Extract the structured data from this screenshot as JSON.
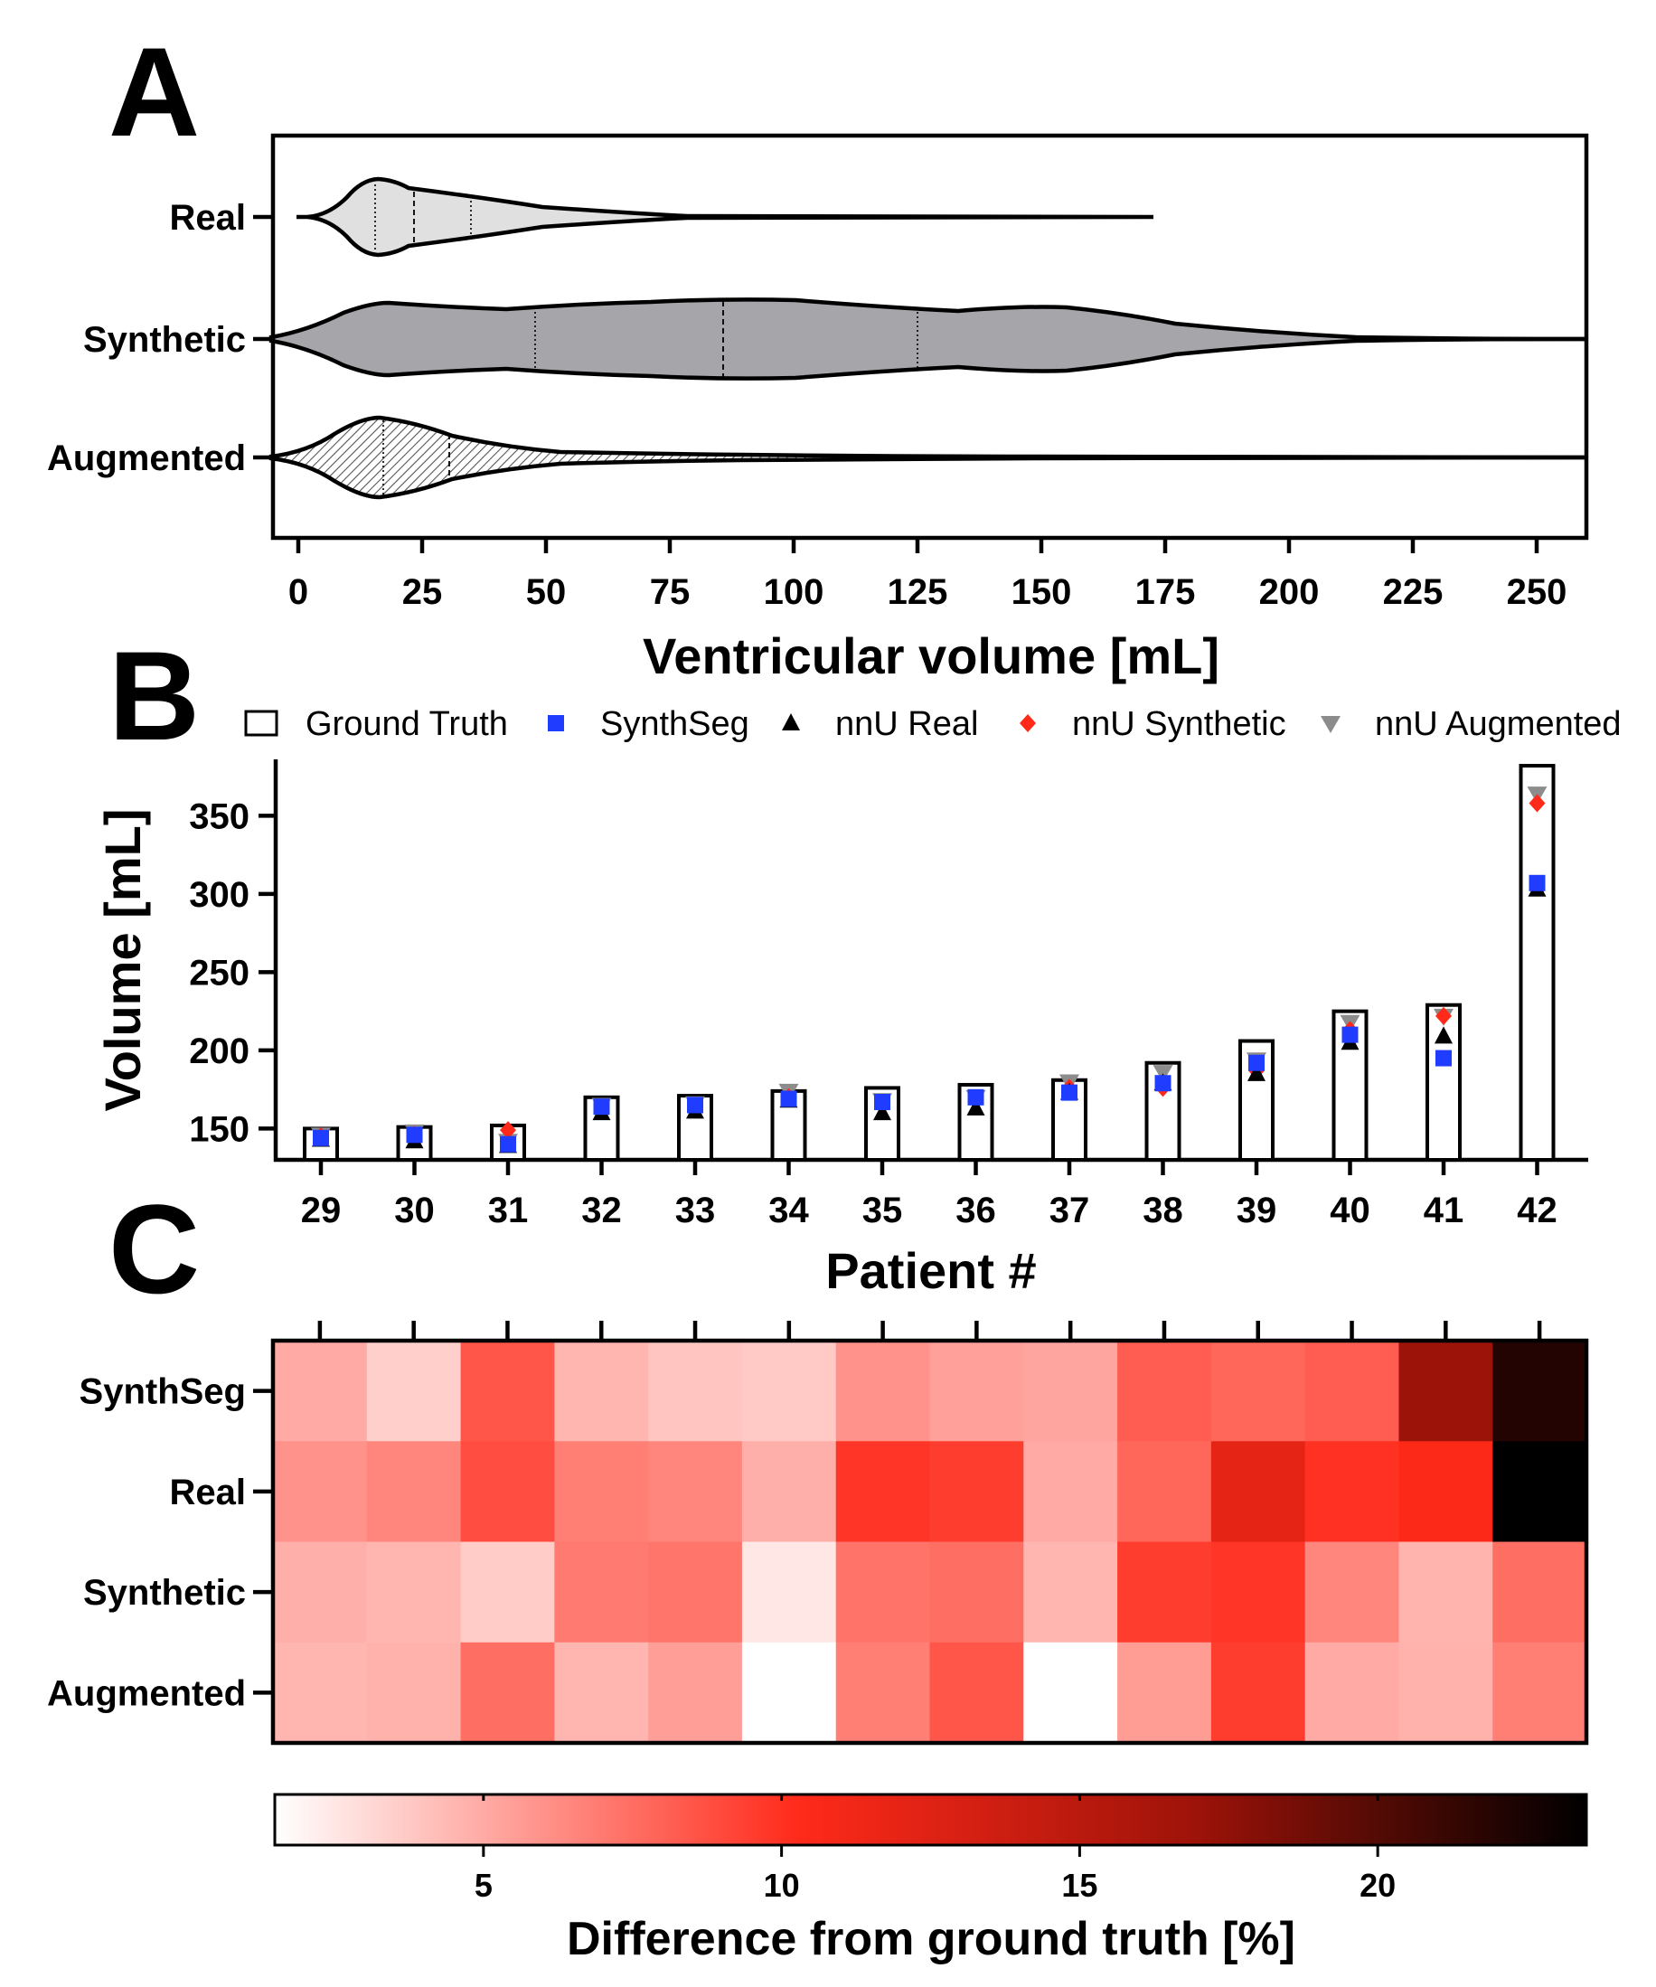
{
  "panels": {
    "a": "A",
    "b": "B",
    "c": "C"
  },
  "colors": {
    "synthseg": "#1f3cff",
    "nnu_real": "#000000",
    "nnu_synthetic": "#ff2a1a",
    "nnu_augmented": "#8c8c8c",
    "violin_real": "#e0e0e0",
    "violin_synthetic": "#a5a5aa",
    "violin_augmented_hatch": "#555555"
  },
  "chart_data": [
    {
      "type": "violin",
      "panel": "A",
      "xlabel": "Ventricular volume [mL]",
      "xlim": [
        -5,
        260
      ],
      "xticks": [
        0,
        25,
        50,
        75,
        100,
        125,
        150,
        175,
        200,
        225,
        250
      ],
      "series": [
        {
          "name": "Real",
          "min": 0,
          "max": 173,
          "q1": 16,
          "median": 24,
          "q3": 35
        },
        {
          "name": "Synthetic",
          "min": -5,
          "max": 260,
          "q1": 48,
          "median": 86,
          "q3": 125
        },
        {
          "name": "Augmented",
          "min": -5,
          "max": 260,
          "q1": 18,
          "median": 31
        }
      ]
    },
    {
      "type": "bar+scatter",
      "panel": "B",
      "xlabel": "Patient #",
      "ylabel": "Volume [mL]",
      "ylim": [
        130,
        382
      ],
      "yticks": [
        150,
        200,
        250,
        300,
        350
      ],
      "categories": [
        "29",
        "30",
        "31",
        "32",
        "33",
        "34",
        "35",
        "36",
        "37",
        "38",
        "39",
        "40",
        "41",
        "42"
      ],
      "series": [
        {
          "name": "Ground Truth",
          "key": "ground_truth",
          "values": [
            150,
            151,
            152,
            170,
            171,
            174,
            176,
            178,
            181,
            192,
            206,
            225,
            229,
            382
          ]
        },
        {
          "name": "SynthSeg",
          "key": "synthseg",
          "values": [
            144,
            146,
            140,
            164,
            165,
            169,
            167,
            170,
            173,
            179,
            192,
            210,
            195,
            307
          ]
        },
        {
          "name": "nnU Real",
          "key": "nnu_real",
          "values": [
            143,
            142,
            139,
            160,
            161,
            168,
            160,
            163,
            173,
            179,
            185,
            205,
            209,
            303
          ]
        },
        {
          "name": "nnU Synthetic",
          "key": "nnu_synthetic",
          "values": [
            145,
            146,
            149,
            163,
            162,
            170,
            165,
            169,
            176,
            176,
            187,
            213,
            222,
            358
          ]
        },
        {
          "name": "nnU Augmented",
          "key": "nnu_augmented",
          "values": [
            146,
            148,
            142,
            165,
            166,
            174,
            168,
            170,
            180,
            186,
            194,
            218,
            222,
            364
          ]
        }
      ]
    },
    {
      "type": "heatmap",
      "panel": "C",
      "rows": [
        "SynthSeg",
        "Real",
        "Synthetic",
        "Augmented"
      ],
      "columns": [
        "29",
        "30",
        "31",
        "32",
        "33",
        "34",
        "35",
        "36",
        "37",
        "38",
        "39",
        "40",
        "41",
        "42"
      ],
      "values": [
        [
          5.0,
          3.5,
          8.5,
          4.5,
          3.9,
          3.7,
          6.0,
          5.4,
          5.2,
          8.2,
          7.8,
          8.2,
          17.0,
          22.0
        ],
        [
          6.0,
          6.5,
          8.8,
          6.8,
          6.5,
          4.8,
          9.8,
          9.5,
          5.0,
          7.8,
          12.0,
          10.0,
          10.5,
          23.5
        ],
        [
          4.8,
          4.5,
          3.6,
          7.0,
          7.2,
          2.5,
          7.3,
          7.5,
          4.5,
          9.5,
          9.8,
          6.5,
          4.6,
          7.5
        ],
        [
          4.5,
          4.7,
          7.5,
          4.5,
          5.5,
          1.2,
          6.8,
          8.5,
          1.2,
          5.6,
          9.5,
          5.0,
          4.7,
          6.8
        ]
      ],
      "colorbar": {
        "label": "Difference from ground truth [%]",
        "range": [
          1.5,
          23.5
        ],
        "ticks": [
          5,
          10,
          15,
          20
        ]
      }
    }
  ]
}
